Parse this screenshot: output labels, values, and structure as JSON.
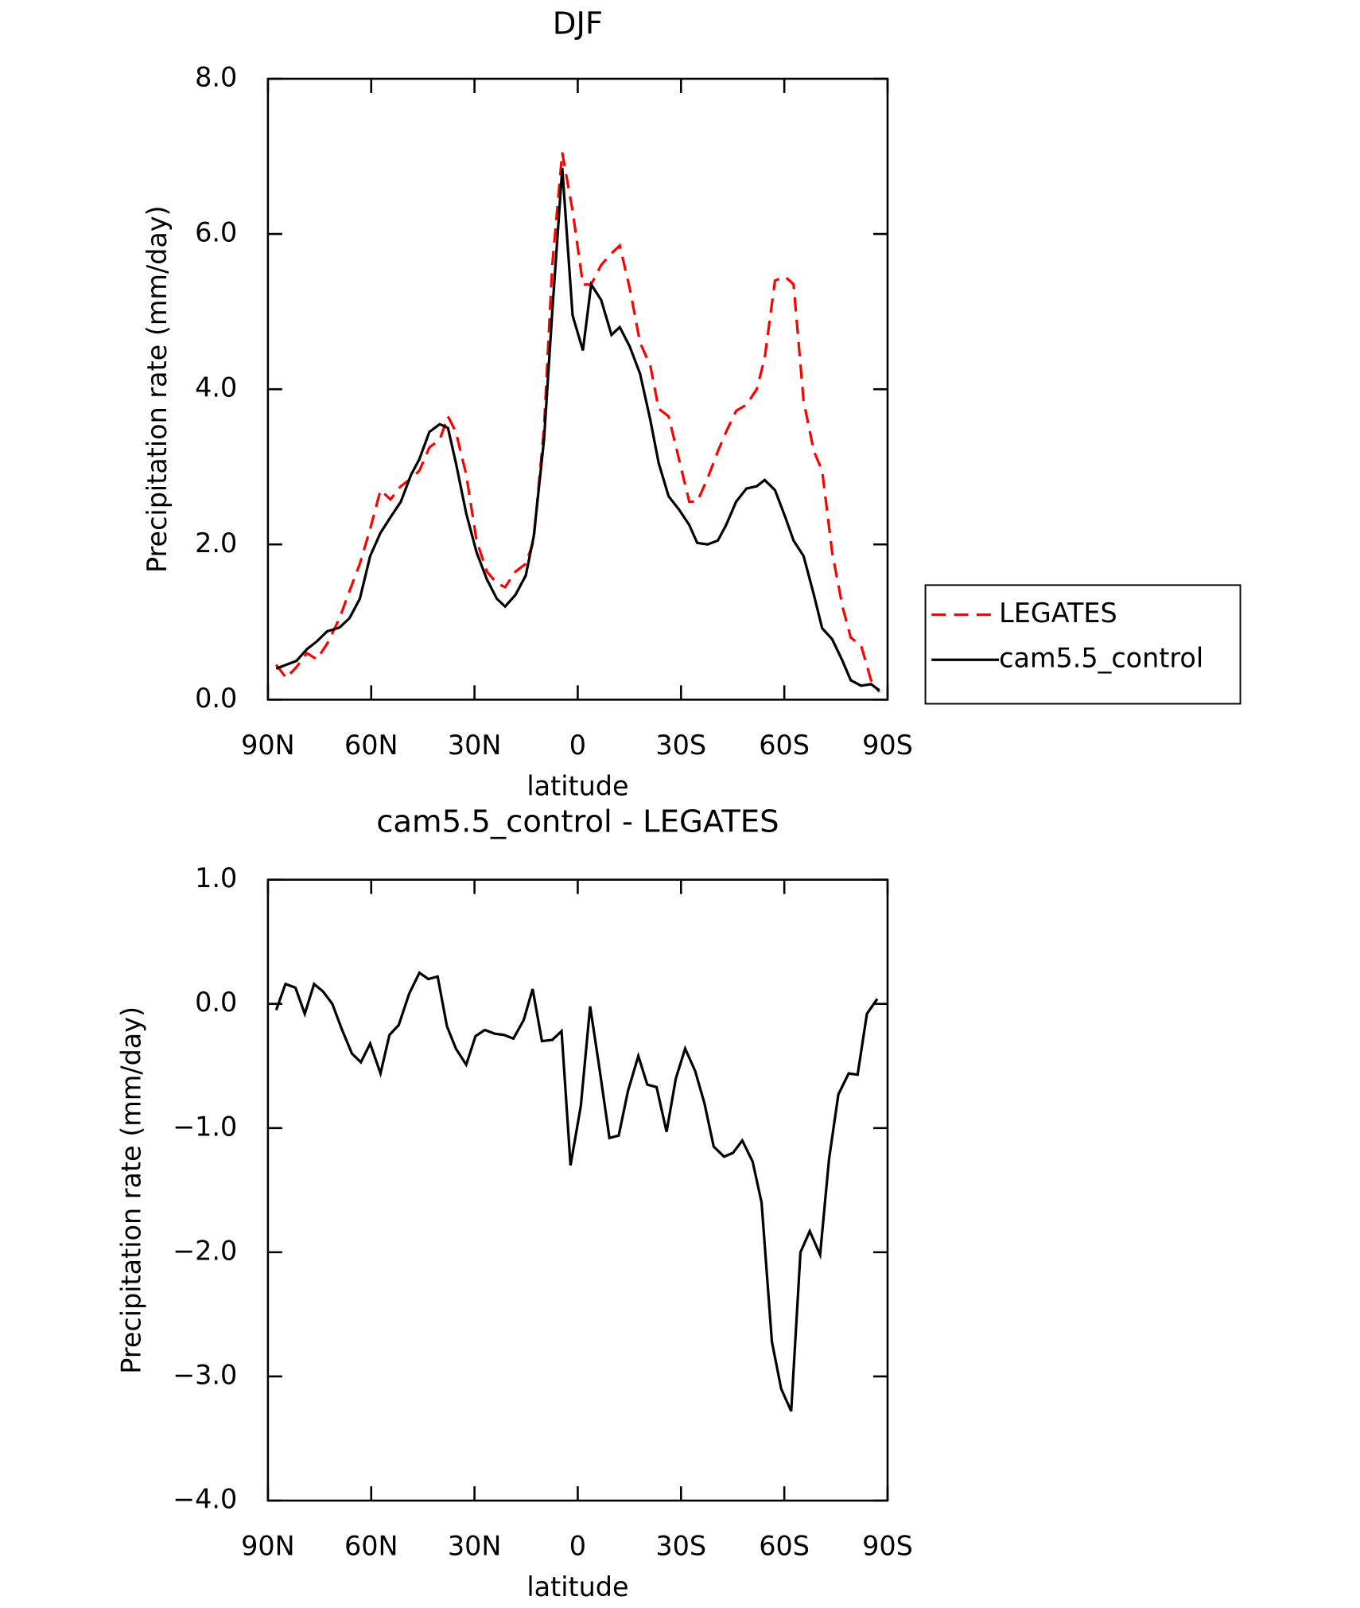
{
  "chart_data": [
    {
      "type": "line",
      "title": "DJF",
      "xlabel": "latitude",
      "ylabel": "Precipitation rate (mm/day)",
      "xlim": [
        90,
        -90
      ],
      "xticks": [
        {
          "value": 90,
          "label": "90N"
        },
        {
          "value": 60,
          "label": "60N"
        },
        {
          "value": 30,
          "label": "30N"
        },
        0,
        {
          "value": -30,
          "label": "30S"
        },
        {
          "value": -60,
          "label": "60S"
        },
        {
          "value": -90,
          "label": "90S"
        }
      ],
      "ylim": [
        0,
        8
      ],
      "yticks": [
        {
          "value": 0,
          "label": "0.0"
        },
        {
          "value": 2,
          "label": "2.0"
        },
        {
          "value": 4,
          "label": "4.0"
        },
        {
          "value": 6,
          "label": "6.0"
        },
        {
          "value": 8,
          "label": "8.0"
        }
      ],
      "legend": "right",
      "x": [
        87.6,
        84.7,
        81.7,
        78.7,
        75.8,
        72.8,
        69.2,
        66.3,
        63.3,
        60.3,
        57.3,
        54.4,
        51.4,
        48.4,
        46.0,
        43.1,
        40.1,
        37.7,
        35.4,
        32.4,
        29.4,
        26.4,
        23.5,
        21.1,
        18.1,
        15.1,
        12.8,
        9.8,
        7.4,
        4.5,
        1.5,
        -1.5,
        -3.9,
        -6.8,
        -9.8,
        -12.2,
        -15.1,
        -18.1,
        -21.1,
        -23.5,
        -26.4,
        -29.4,
        -32.4,
        -34.7,
        -37.7,
        -40.7,
        -43.1,
        -46.0,
        -49.0,
        -52.0,
        -54.3,
        -57.3,
        -60.3,
        -62.7,
        -65.6,
        -68.6,
        -71.0,
        -73.9,
        -76.9,
        -79.3,
        -82.3,
        -85.2,
        -87.6
      ],
      "series": [
        {
          "name": "LEGATES",
          "color": "#ff0000",
          "dash": "dashed",
          "values": [
            0.45,
            0.28,
            0.42,
            0.6,
            0.52,
            0.72,
            1.05,
            1.4,
            1.75,
            2.2,
            2.7,
            2.58,
            2.75,
            2.85,
            2.95,
            3.25,
            3.35,
            3.65,
            3.45,
            2.9,
            2.05,
            1.65,
            1.5,
            1.45,
            1.65,
            1.75,
            2.05,
            3.5,
            5.6,
            7.05,
            6.3,
            5.35,
            5.35,
            5.6,
            5.75,
            5.85,
            5.3,
            4.6,
            4.3,
            3.75,
            3.65,
            3.1,
            2.55,
            2.55,
            2.85,
            3.2,
            3.45,
            3.72,
            3.8,
            4.0,
            4.4,
            5.4,
            5.45,
            5.35,
            3.85,
            3.2,
            2.95,
            1.9,
            1.2,
            0.8,
            0.7,
            0.25,
            0.1
          ]
        },
        {
          "name": "cam5.5_control",
          "color": "#000000",
          "dash": "solid",
          "values": [
            0.4,
            0.45,
            0.5,
            0.65,
            0.75,
            0.88,
            0.93,
            1.05,
            1.3,
            1.85,
            2.15,
            2.35,
            2.55,
            2.9,
            3.1,
            3.45,
            3.55,
            3.5,
            3.05,
            2.4,
            1.9,
            1.55,
            1.3,
            1.2,
            1.35,
            1.6,
            2.1,
            3.35,
            5.0,
            6.85,
            4.95,
            4.5,
            5.35,
            5.15,
            4.7,
            4.8,
            4.55,
            4.2,
            3.6,
            3.05,
            2.62,
            2.45,
            2.25,
            2.02,
            2.0,
            2.05,
            2.25,
            2.55,
            2.72,
            2.75,
            2.83,
            2.7,
            2.35,
            2.05,
            1.85,
            1.35,
            0.92,
            0.78,
            0.5,
            0.25,
            0.18,
            0.2,
            0.12
          ]
        }
      ]
    },
    {
      "type": "line",
      "title": "cam5.5_control - LEGATES",
      "xlabel": "latitude",
      "ylabel": "Precipitation rate (mm/day)",
      "xlim": [
        90,
        -90
      ],
      "xticks": [
        {
          "value": 90,
          "label": "90N"
        },
        {
          "value": 60,
          "label": "60N"
        },
        {
          "value": 30,
          "label": "30N"
        },
        0,
        {
          "value": -30,
          "label": "30S"
        },
        {
          "value": -60,
          "label": "60S"
        },
        {
          "value": -90,
          "label": "90S"
        }
      ],
      "ylim": [
        -4,
        1
      ],
      "yticks": [
        {
          "value": -4,
          "label": "−4.0"
        },
        {
          "value": -3,
          "label": "−3.0"
        },
        {
          "value": -2,
          "label": "−2.0"
        },
        {
          "value": -1,
          "label": "−1.0"
        },
        {
          "value": 0,
          "label": "0.0"
        },
        {
          "value": 1,
          "label": "1.0"
        }
      ],
      "x": [
        87.6,
        84.9,
        82.0,
        79.3,
        76.6,
        74.0,
        71.3,
        68.6,
        65.6,
        63.0,
        60.3,
        57.3,
        54.7,
        52.0,
        49.0,
        46.0,
        43.4,
        40.7,
        38.0,
        35.4,
        32.4,
        29.7,
        27.0,
        24.1,
        21.4,
        18.7,
        15.7,
        13.1,
        10.4,
        7.4,
        4.7,
        2.1,
        -0.9,
        -3.6,
        -6.2,
        -9.2,
        -11.9,
        -14.6,
        -17.6,
        -20.2,
        -22.9,
        -25.8,
        -28.5,
        -31.2,
        -34.1,
        -36.8,
        -39.5,
        -42.5,
        -45.1,
        -47.8,
        -50.8,
        -53.4,
        -56.4,
        -59.1,
        -62.0,
        -64.7,
        -67.4,
        -70.4,
        -73.0,
        -75.7,
        -78.7,
        -81.3,
        -84.0,
        -87.0
      ],
      "series": [
        {
          "color": "#000000",
          "dash": "solid",
          "values": [
            -0.05,
            0.16,
            0.13,
            -0.08,
            0.16,
            0.1,
            0.0,
            -0.2,
            -0.4,
            -0.47,
            -0.32,
            -0.56,
            -0.25,
            -0.17,
            0.08,
            0.25,
            0.2,
            0.22,
            -0.18,
            -0.36,
            -0.49,
            -0.26,
            -0.21,
            -0.24,
            -0.25,
            -0.28,
            -0.13,
            0.12,
            -0.3,
            -0.29,
            -0.22,
            -1.3,
            -0.82,
            -0.02,
            -0.5,
            -1.08,
            -1.06,
            -0.7,
            -0.42,
            -0.65,
            -0.67,
            -1.03,
            -0.6,
            -0.36,
            -0.54,
            -0.8,
            -1.15,
            -1.23,
            -1.2,
            -1.1,
            -1.27,
            -1.6,
            -2.72,
            -3.1,
            -3.28,
            -2.0,
            -1.83,
            -2.02,
            -1.25,
            -0.73,
            -0.56,
            -0.57,
            -0.08,
            0.04
          ]
        }
      ]
    }
  ]
}
